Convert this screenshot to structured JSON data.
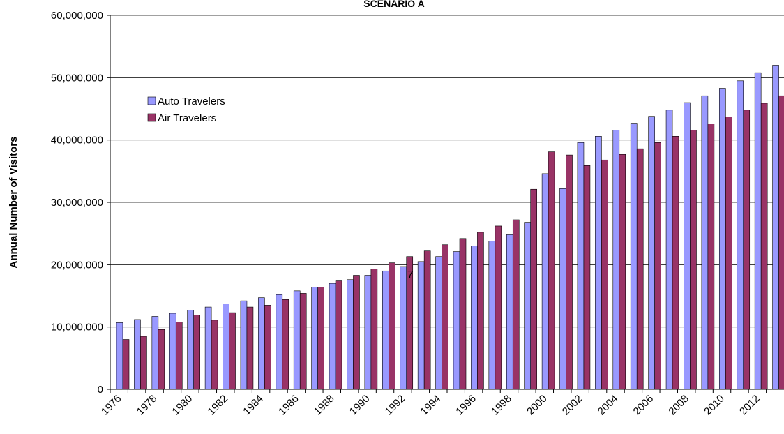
{
  "chart_data": {
    "type": "bar",
    "title": "SCENARIO A",
    "y_label": "Annual Number of Visitors",
    "categories": [
      "1976",
      null,
      "1978",
      null,
      "1980",
      null,
      "1982",
      null,
      "1984",
      null,
      "1986",
      null,
      "1988",
      null,
      "1990",
      null,
      "1992",
      null,
      "1994",
      null,
      "1996",
      null,
      "1998",
      null,
      "2000",
      null,
      "2002",
      null,
      "2004",
      null,
      "2006",
      null,
      "2008",
      null,
      "2010",
      null,
      "2012",
      null
    ],
    "series": [
      {
        "name": "Auto Travelers",
        "color": "#9999ff",
        "values": [
          10700000,
          11200000,
          11700000,
          12200000,
          12700000,
          13200000,
          13700000,
          14200000,
          14700000,
          15200000,
          15800000,
          16400000,
          17000000,
          17600000,
          18300000,
          19000000,
          19700000,
          20500000,
          21300000,
          22100000,
          23000000,
          23800000,
          24800000,
          26800000,
          34600000,
          32200000,
          39600000,
          40600000,
          41600000,
          42700000,
          43800000,
          44800000,
          46000000,
          47100000,
          48300000,
          49500000,
          50800000,
          52000000
        ]
      },
      {
        "name": "Air Travelers",
        "color": "#993366",
        "values": [
          8000000,
          8500000,
          9600000,
          10800000,
          11900000,
          11100000,
          12300000,
          13200000,
          13500000,
          14400000,
          15400000,
          16400000,
          17400000,
          18300000,
          19300000,
          20300000,
          21300000,
          22200000,
          23200000,
          24200000,
          25200000,
          26200000,
          27200000,
          32100000,
          38100000,
          37600000,
          35900000,
          36800000,
          37700000,
          38600000,
          39600000,
          40600000,
          41600000,
          42600000,
          43700000,
          44800000,
          45900000,
          47100000
        ]
      }
    ],
    "ylim": [
      0,
      60000000
    ],
    "yticks": [
      0,
      {
        "value": 10000000,
        "label": "10,000,000"
      },
      {
        "value": 20000000,
        "label": "20,000,000"
      },
      {
        "value": 30000000,
        "label": "30,000,000"
      },
      {
        "value": 40000000,
        "label": "40,000,000"
      },
      {
        "value": 50000000,
        "label": "50,000,000"
      },
      {
        "value": 60000000,
        "label": "60,000,000"
      }
    ],
    "grid": true,
    "legend": "upper left",
    "annotation": "7"
  }
}
